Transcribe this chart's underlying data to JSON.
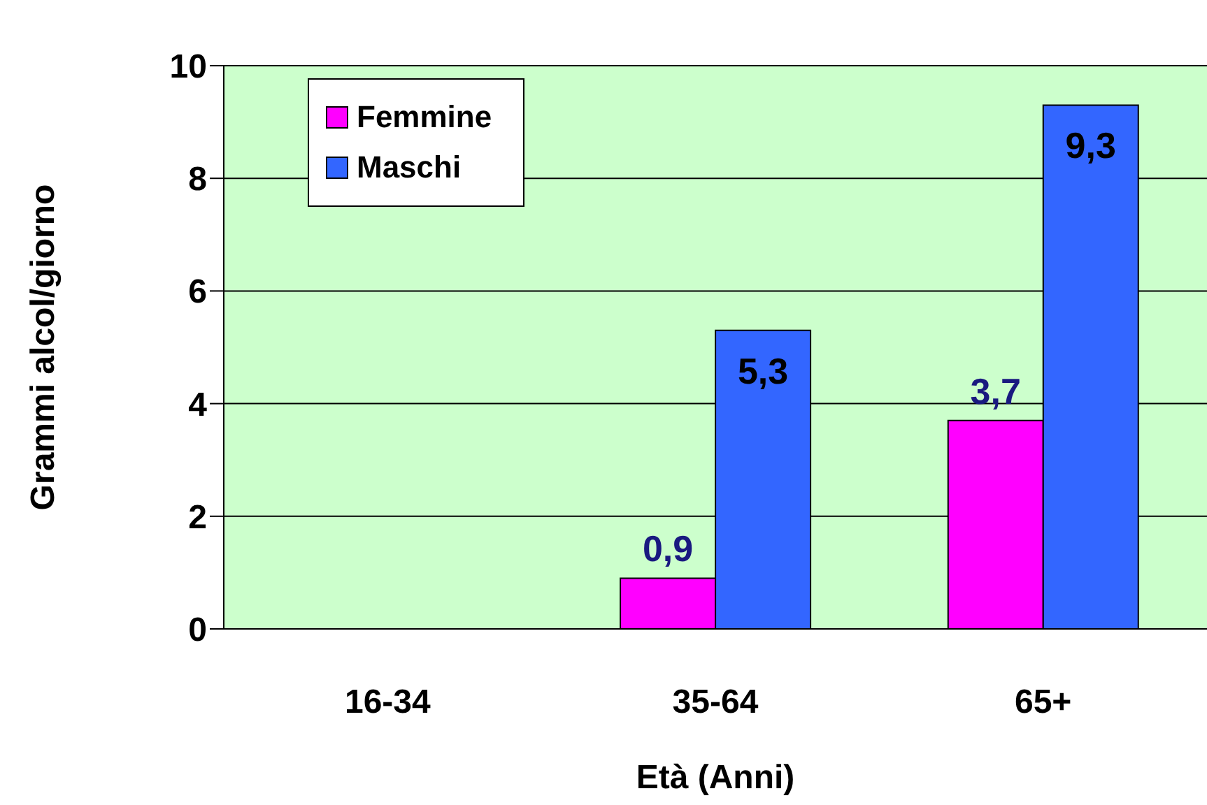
{
  "chart_data": {
    "type": "bar",
    "xlabel": "Età (Anni)",
    "ylabel": "Grammi alcol/giorno",
    "categories": [
      "16-34",
      "35-64",
      "65+"
    ],
    "series": [
      {
        "name": "Femmine",
        "color": "#ff00ff",
        "values": [
          null,
          0.9,
          3.7
        ],
        "value_labels": [
          null,
          "0,9",
          "3,7"
        ]
      },
      {
        "name": "Maschi",
        "color": "#3366ff",
        "values": [
          null,
          5.3,
          9.3
        ],
        "value_labels": [
          null,
          "5,3",
          "9,3"
        ]
      }
    ],
    "ylim": [
      0,
      10
    ],
    "yticks": [
      0,
      2,
      4,
      6,
      8,
      10
    ],
    "grid": "y",
    "legend": "top left"
  }
}
